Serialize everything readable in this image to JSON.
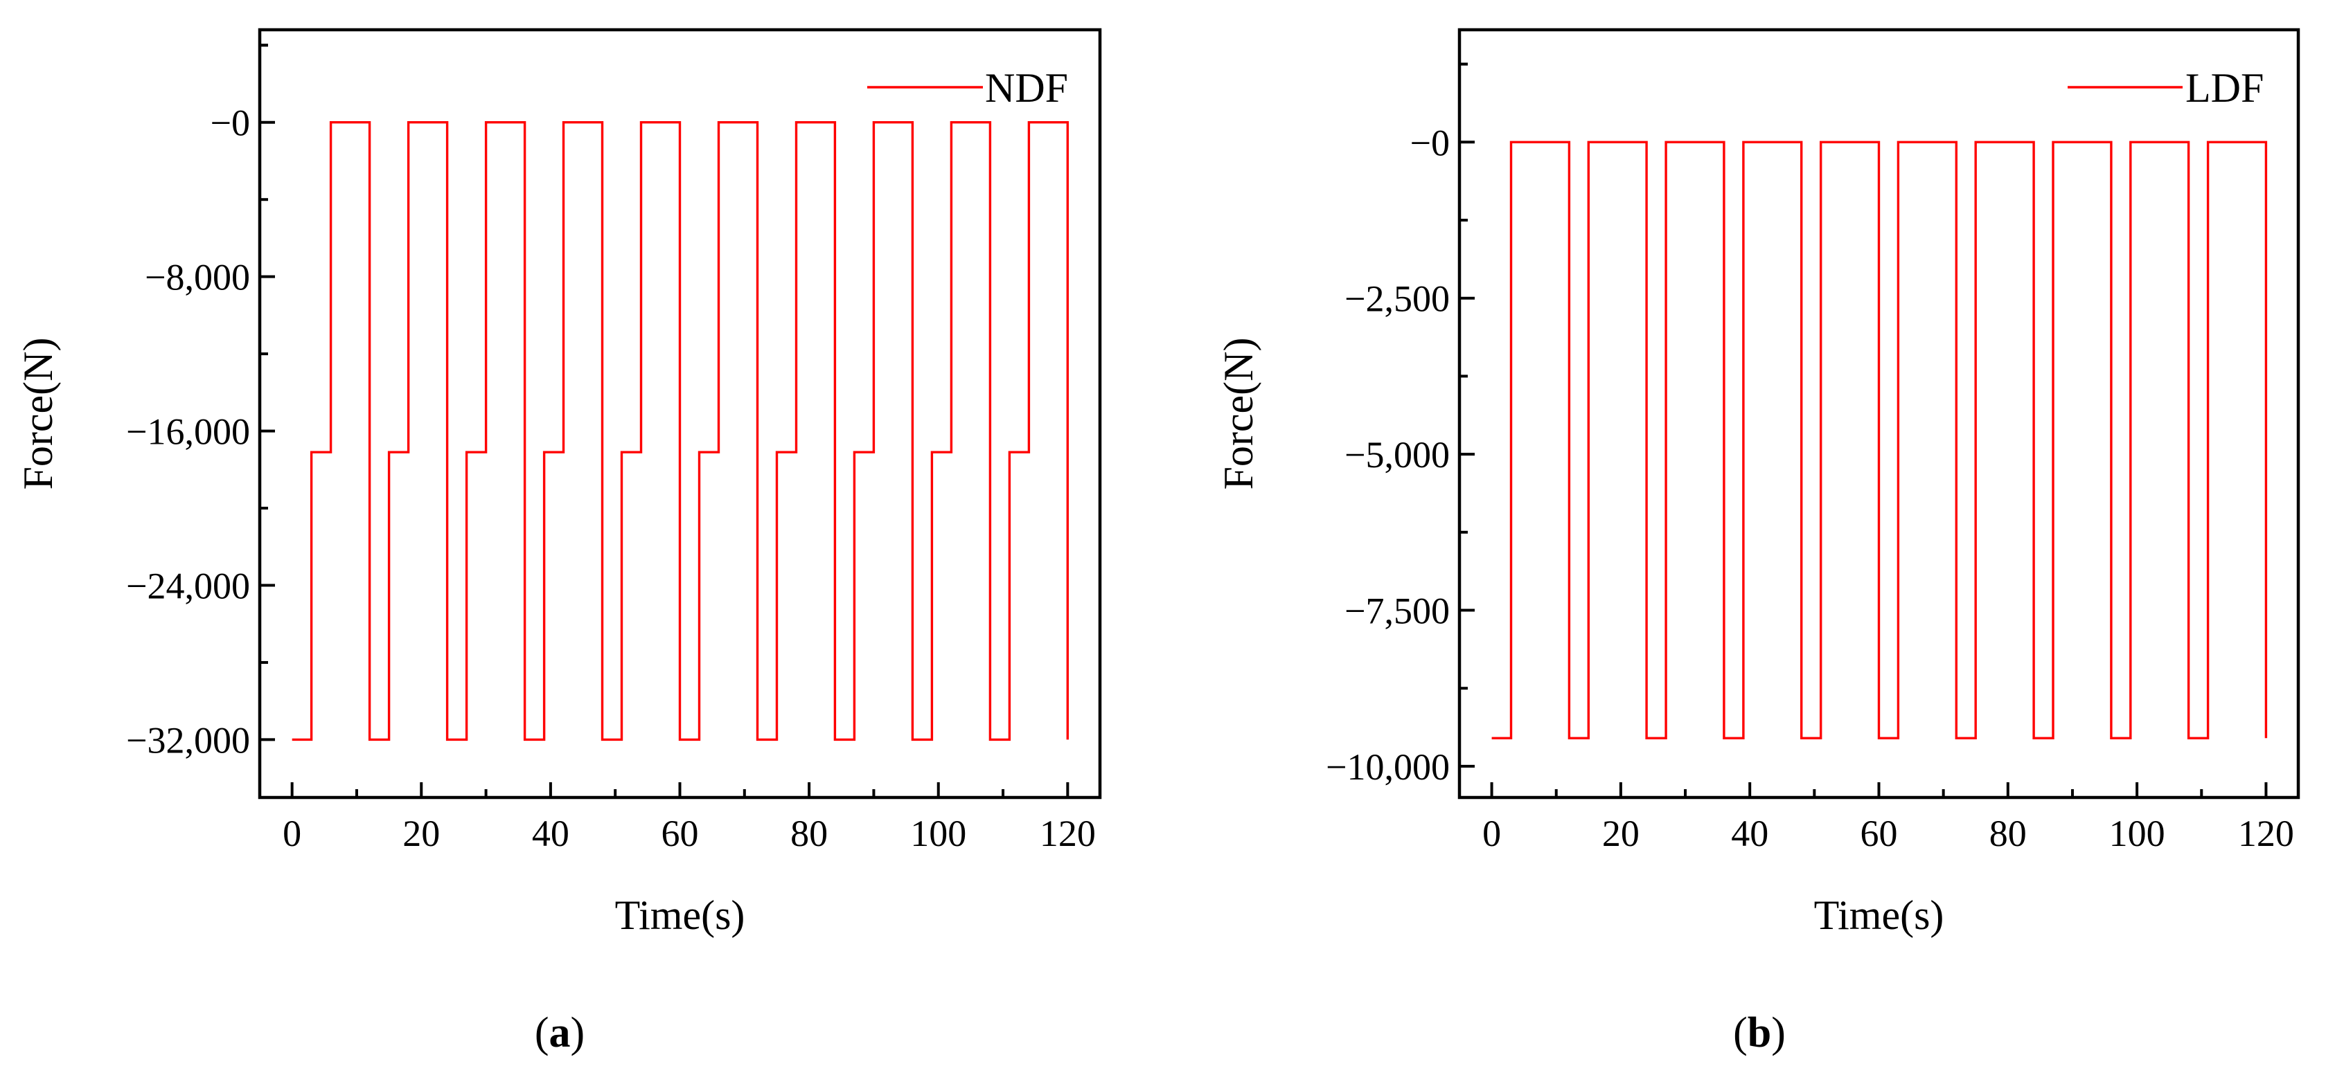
{
  "chart_data": [
    {
      "type": "line",
      "panel_label": "a",
      "xlabel": "Time(s)",
      "ylabel": "Force(N)",
      "xlim": [
        -5,
        125
      ],
      "ylim": [
        -35000,
        4800
      ],
      "x_ticks": [
        0,
        20,
        40,
        60,
        80,
        100,
        120
      ],
      "x_tick_labels": [
        "0",
        "20",
        "40",
        "60",
        "80",
        "100",
        "120"
      ],
      "y_ticks": [
        0,
        -8000,
        -16000,
        -24000,
        -32000
      ],
      "y_tick_labels": [
        "−0",
        "−8,000",
        "−16,000",
        "−24,000",
        "−32,000"
      ],
      "legend_position": "top-right",
      "series": [
        {
          "name": "NDF",
          "color": "#ff0000",
          "period": 12,
          "cycles": 10,
          "profile": [
            [
              0,
              -32000
            ],
            [
              3,
              -32000
            ],
            [
              3,
              -17100
            ],
            [
              6,
              -17100
            ],
            [
              6,
              0
            ],
            [
              12,
              0
            ]
          ],
          "end": [
            120,
            -32000
          ]
        }
      ]
    },
    {
      "type": "line",
      "panel_label": "b",
      "xlabel": "Time(s)",
      "ylabel": "Force(N)",
      "xlim": [
        -5,
        125
      ],
      "ylim": [
        -10500,
        1800
      ],
      "x_ticks": [
        0,
        20,
        40,
        60,
        80,
        100,
        120
      ],
      "x_tick_labels": [
        "0",
        "20",
        "40",
        "60",
        "80",
        "100",
        "120"
      ],
      "y_ticks": [
        0,
        -2500,
        -5000,
        -7500,
        -10000
      ],
      "y_tick_labels": [
        "−0",
        "−2,500",
        "−5,000",
        "−7,500",
        "−10,000"
      ],
      "legend_position": "top-right",
      "series": [
        {
          "name": "LDF",
          "color": "#ff0000",
          "period": 12,
          "cycles": 10,
          "profile": [
            [
              0,
              -9550
            ],
            [
              3,
              -9550
            ],
            [
              3,
              0
            ],
            [
              12,
              0
            ]
          ],
          "end": [
            120,
            -9550
          ]
        }
      ]
    }
  ]
}
